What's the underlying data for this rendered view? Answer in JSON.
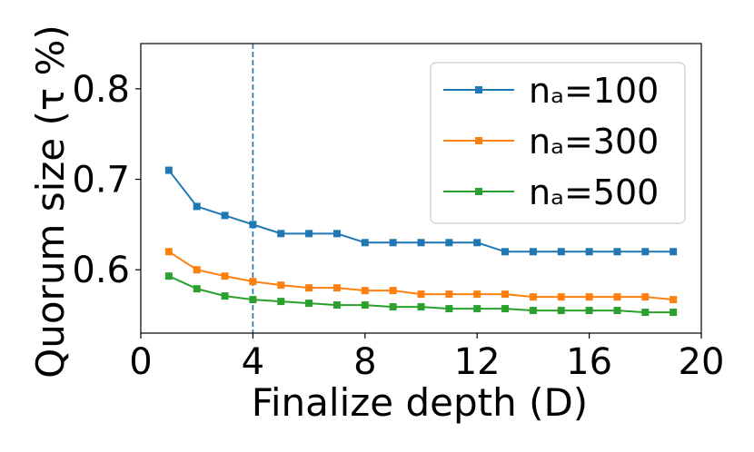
{
  "chart_data": {
    "type": "line",
    "title": "",
    "xlabel": "Finalize depth (D)",
    "ylabel": "Quorum size  (τ %)",
    "xlim": [
      0,
      20
    ],
    "ylim": [
      0.53,
      0.85
    ],
    "xticks": [
      0,
      4,
      8,
      12,
      16,
      20
    ],
    "yticks": [
      0.6,
      0.7,
      0.8
    ],
    "x": [
      1,
      2,
      3,
      4,
      5,
      6,
      7,
      8,
      9,
      10,
      11,
      12,
      13,
      14,
      15,
      16,
      17,
      18,
      19
    ],
    "series": [
      {
        "name": "nₐ=100",
        "color": "#1f77b4",
        "marker": "square",
        "values": [
          0.71,
          0.67,
          0.66,
          0.65,
          0.64,
          0.64,
          0.64,
          0.63,
          0.63,
          0.63,
          0.63,
          0.63,
          0.62,
          0.62,
          0.62,
          0.62,
          0.62,
          0.62,
          0.62
        ]
      },
      {
        "name": "nₐ=300",
        "color": "#ff7f0e",
        "marker": "square",
        "values": [
          0.62,
          0.6,
          0.593,
          0.587,
          0.583,
          0.58,
          0.58,
          0.577,
          0.577,
          0.573,
          0.573,
          0.573,
          0.573,
          0.57,
          0.57,
          0.57,
          0.57,
          0.57,
          0.567
        ]
      },
      {
        "name": "nₐ=500",
        "color": "#2ca02c",
        "marker": "square",
        "values": [
          0.593,
          0.579,
          0.571,
          0.567,
          0.565,
          0.563,
          0.561,
          0.561,
          0.559,
          0.559,
          0.557,
          0.557,
          0.557,
          0.555,
          0.555,
          0.555,
          0.555,
          0.553,
          0.553
        ]
      }
    ],
    "annotations": [
      {
        "type": "vline",
        "x": 4,
        "style": "dashed",
        "color": "#1f77b4"
      }
    ],
    "grid": false,
    "legend": "top-right"
  }
}
